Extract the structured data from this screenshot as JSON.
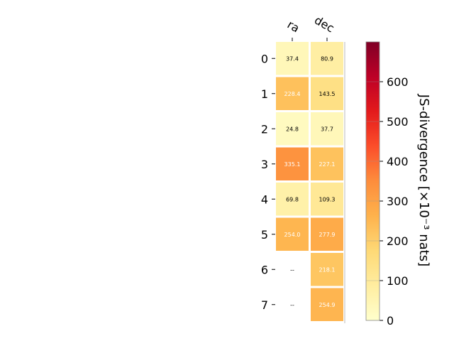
{
  "chart_data": {
    "type": "heatmap",
    "columns": [
      "ra",
      "dec"
    ],
    "rows": [
      "0",
      "1",
      "2",
      "3",
      "4",
      "5",
      "6",
      "7"
    ],
    "values": [
      [
        37.4,
        80.9
      ],
      [
        228.4,
        143.5
      ],
      [
        24.8,
        37.7
      ],
      [
        335.1,
        227.1
      ],
      [
        69.8,
        109.3
      ],
      [
        254.0,
        277.9
      ],
      [
        null,
        218.1
      ],
      [
        null,
        254.9
      ]
    ],
    "missing_label": "--",
    "colorbar": {
      "label": "JS-divergence [×10⁻³ nats]",
      "min": 0,
      "max": 700,
      "ticks": [
        0,
        100,
        200,
        300,
        400,
        500,
        600
      ],
      "colormap": "YlOrRd",
      "colors": [
        "#ffffcc",
        "#ffeda0",
        "#fed976",
        "#feb24c",
        "#fd8d3c",
        "#fc4e2a",
        "#e31a1c",
        "#bd0026",
        "#800026"
      ]
    }
  }
}
